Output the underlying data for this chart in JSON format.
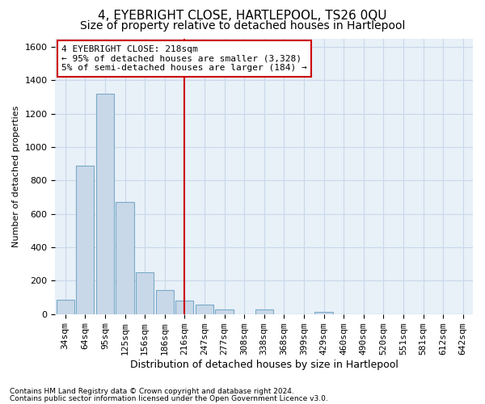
{
  "title": "4, EYEBRIGHT CLOSE, HARTLEPOOL, TS26 0QU",
  "subtitle": "Size of property relative to detached houses in Hartlepool",
  "xlabel": "Distribution of detached houses by size in Hartlepool",
  "ylabel": "Number of detached properties",
  "footnote1": "Contains HM Land Registry data © Crown copyright and database right 2024.",
  "footnote2": "Contains public sector information licensed under the Open Government Licence v3.0.",
  "bar_labels": [
    "34sqm",
    "64sqm",
    "95sqm",
    "125sqm",
    "156sqm",
    "186sqm",
    "216sqm",
    "247sqm",
    "277sqm",
    "308sqm",
    "338sqm",
    "368sqm",
    "399sqm",
    "429sqm",
    "460sqm",
    "490sqm",
    "520sqm",
    "551sqm",
    "581sqm",
    "612sqm",
    "642sqm"
  ],
  "bar_values": [
    85,
    890,
    1320,
    670,
    250,
    145,
    80,
    55,
    30,
    0,
    30,
    0,
    0,
    15,
    0,
    0,
    0,
    0,
    0,
    0,
    0
  ],
  "bar_color": "#c8d8e8",
  "bar_edgecolor": "#7aaac8",
  "vline_x": 6,
  "vline_color": "#cc0000",
  "annotation_text": "4 EYEBRIGHT CLOSE: 218sqm\n← 95% of detached houses are smaller (3,328)\n5% of semi-detached houses are larger (184) →",
  "annotation_box_color": "#ffffff",
  "annotation_box_edgecolor": "#cc0000",
  "ylim": [
    0,
    1650
  ],
  "yticks": [
    0,
    200,
    400,
    600,
    800,
    1000,
    1200,
    1400,
    1600
  ],
  "grid_color": "#c8d8e8",
  "bg_color": "#e8f0f8",
  "fig_color": "#ffffff",
  "title_fontsize": 11,
  "subtitle_fontsize": 10,
  "xlabel_fontsize": 9,
  "ylabel_fontsize": 8,
  "tick_fontsize": 8,
  "annot_fontsize": 8,
  "footnote_fontsize": 6.5
}
